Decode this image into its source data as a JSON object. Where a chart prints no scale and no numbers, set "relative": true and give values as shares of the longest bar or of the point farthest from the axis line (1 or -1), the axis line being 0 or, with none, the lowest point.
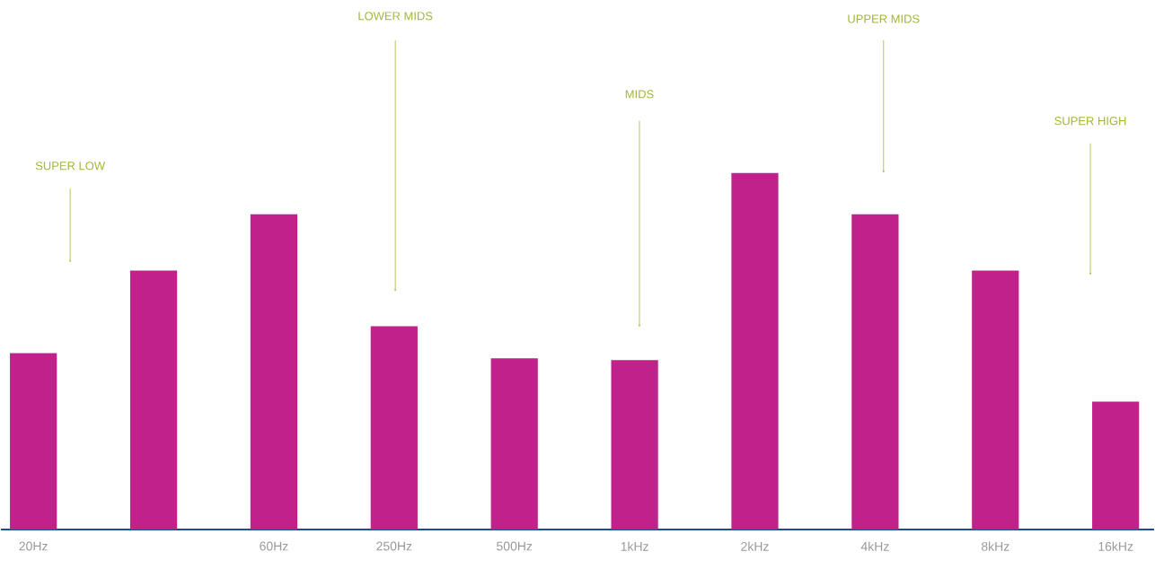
{
  "chart_data": {
    "type": "bar",
    "relative": true,
    "categories": [
      "20Hz",
      null,
      "60Hz",
      "250Hz",
      "500Hz",
      "1kHz",
      "2kHz",
      "4kHz",
      "8kHz",
      "16kHz"
    ],
    "values": [
      0.495,
      0.726,
      0.884,
      0.57,
      0.48,
      0.475,
      1.0,
      0.884,
      0.726,
      0.359
    ],
    "color": "#c0218a",
    "annotations": [
      "SUPER LOW",
      "LOWER MIDS",
      "MIDS",
      "UPPER MIDS",
      "SUPER HIGH"
    ]
  }
}
